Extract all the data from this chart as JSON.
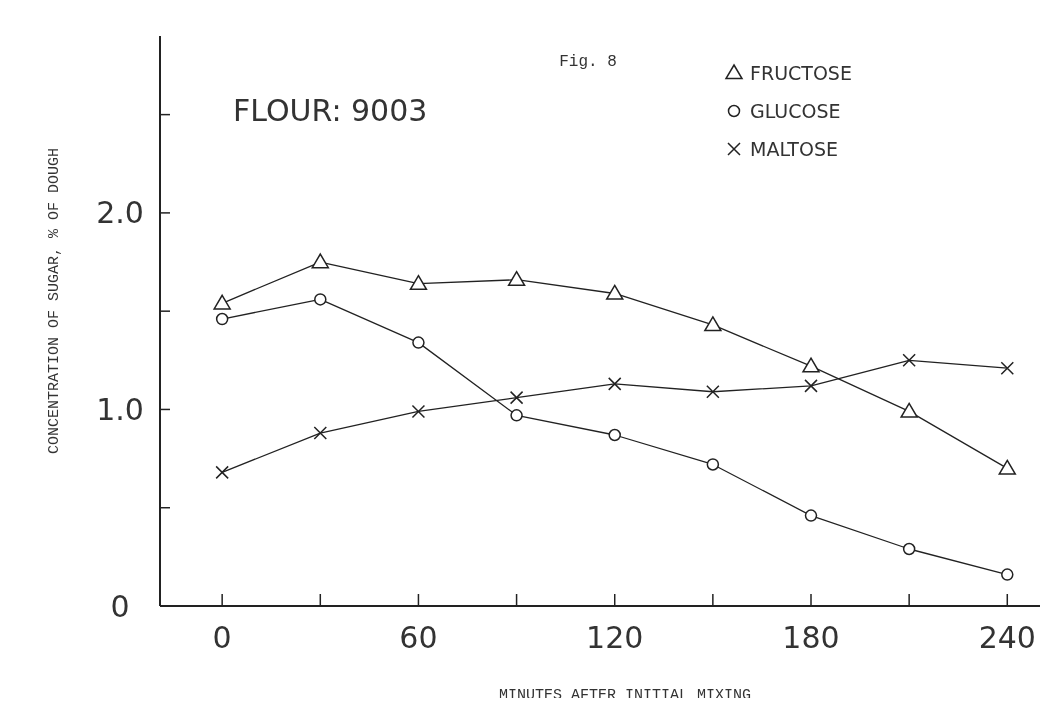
{
  "chart_data": {
    "type": "line",
    "xlabel": "MINUTES AFTER INITIAL MIXING",
    "ylabel": "CONCENTRATION OF SUGAR, % OF DOUGH",
    "annotations": [
      "Fig. 8",
      "FLOUR: 9003"
    ],
    "x": [
      0,
      30,
      60,
      90,
      120,
      150,
      180,
      210,
      240
    ],
    "series": [
      {
        "name": "FRUCTOSE",
        "color": "#222222",
        "marker": "triangle",
        "values": [
          1.54,
          1.75,
          1.64,
          1.66,
          1.59,
          1.43,
          1.22,
          0.99,
          0.7
        ]
      },
      {
        "name": "GLUCOSE",
        "color": "#222222",
        "marker": "circle",
        "values": [
          1.46,
          1.56,
          1.34,
          0.97,
          0.87,
          0.72,
          0.46,
          0.29,
          0.16
        ]
      },
      {
        "name": "MALTOSE",
        "color": "#222222",
        "marker": "cross",
        "values": [
          0.68,
          0.88,
          0.99,
          1.06,
          1.13,
          1.09,
          1.12,
          1.25,
          1.21
        ]
      }
    ],
    "xlim": [
      -19,
      250
    ],
    "xticks": [
      0,
      {
        "value": 30,
        "label": null
      },
      60,
      {
        "value": 90,
        "label": null
      },
      120,
      {
        "value": 150,
        "label": null
      },
      180,
      {
        "value": 210,
        "label": null
      },
      240
    ],
    "ylim": [
      0,
      2.9
    ],
    "yticks": [
      0,
      {
        "value": 0.5,
        "label": null
      },
      {
        "value": 1,
        "label": "1.0"
      },
      {
        "value": 1.5,
        "label": null
      },
      {
        "value": 2,
        "label": "2.0"
      },
      {
        "value": 2.5,
        "label": null
      }
    ],
    "legend": "top right",
    "grid": false,
    "line_style": "solid"
  }
}
